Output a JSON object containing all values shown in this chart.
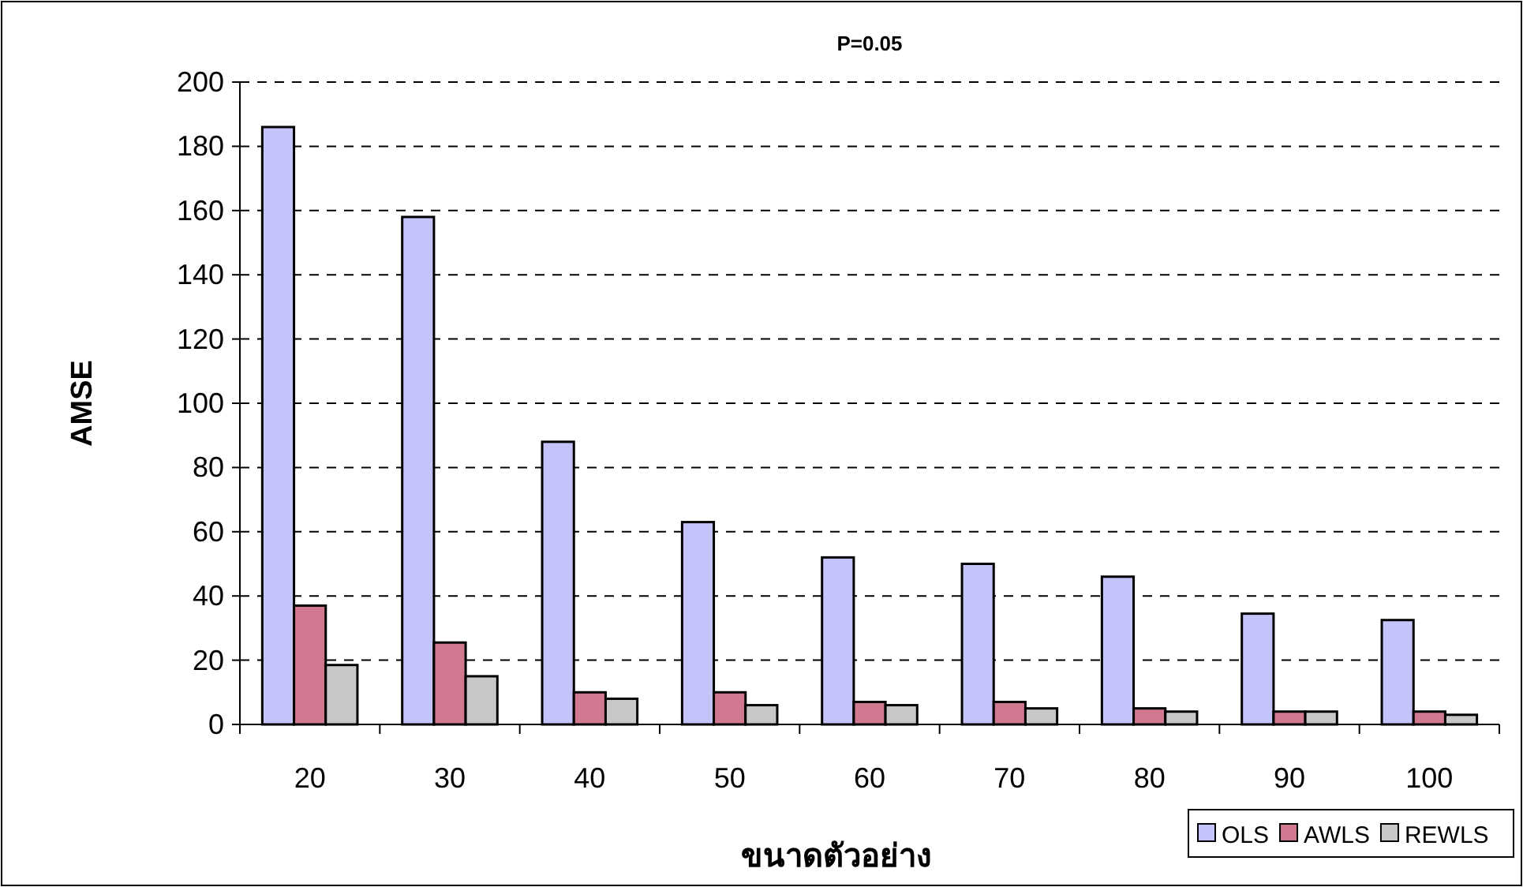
{
  "chart_data": {
    "type": "bar",
    "title": "P=0.05",
    "xlabel": "ขนาดตัวอย่าง",
    "ylabel": "AMSE",
    "categories": [
      "20",
      "30",
      "40",
      "50",
      "60",
      "70",
      "80",
      "90",
      "100"
    ],
    "series": [
      {
        "name": "OLS",
        "color": "#c4c4fa",
        "values": [
          186,
          158,
          88,
          63,
          52,
          50,
          46,
          34.5,
          32.5
        ]
      },
      {
        "name": "AWLS",
        "color": "#d07890",
        "values": [
          37,
          25.5,
          10,
          10,
          7,
          7,
          5,
          4,
          4
        ]
      },
      {
        "name": "REWLS",
        "color": "#c8c8c8",
        "values": [
          18.5,
          15,
          8,
          6,
          6,
          5,
          4,
          4,
          3
        ]
      }
    ],
    "ylim": [
      0,
      200
    ],
    "yticks": [
      0,
      20,
      40,
      60,
      80,
      100,
      120,
      140,
      160,
      180,
      200
    ],
    "grid": "y",
    "legend": "bottom right"
  }
}
